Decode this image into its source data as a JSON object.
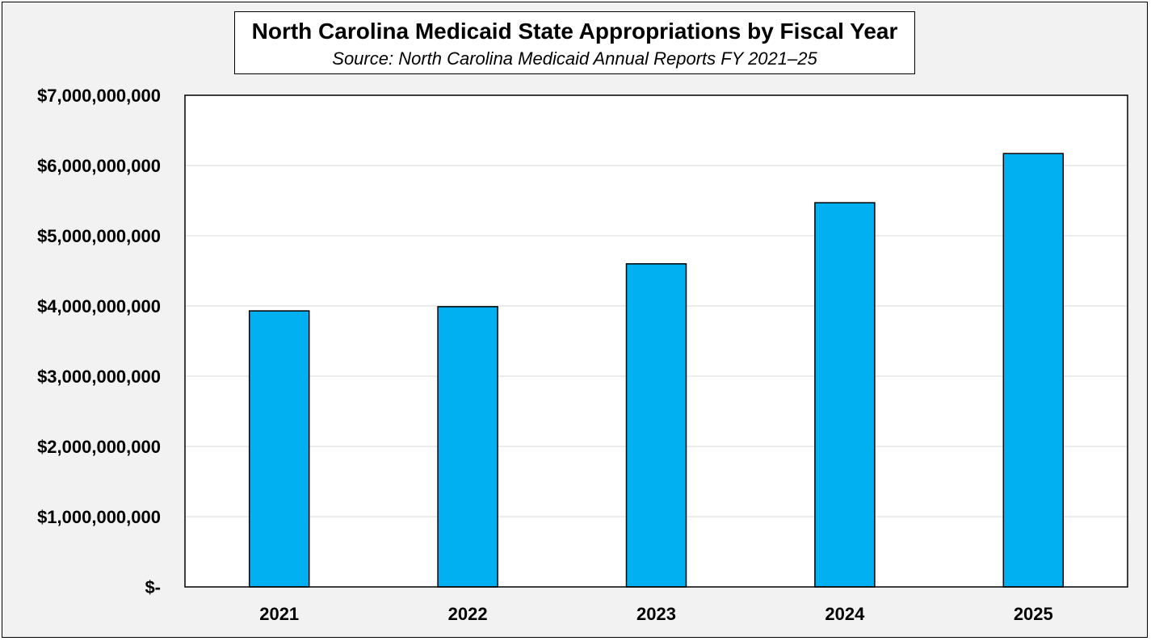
{
  "chart_data": {
    "type": "bar",
    "title": "North Carolina Medicaid State Appropriations by Fiscal Year",
    "subtitle": "Source: North Carolina Medicaid Annual Reports FY 2021–25",
    "categories": [
      "2021",
      "2022",
      "2023",
      "2024",
      "2025"
    ],
    "values": [
      3930000000,
      3990000000,
      4600000000,
      5470000000,
      6170000000
    ],
    "ylim": [
      0,
      7000000000
    ],
    "yticks": [
      0,
      1000000000,
      2000000000,
      3000000000,
      4000000000,
      5000000000,
      6000000000,
      7000000000
    ],
    "ytick_labels": [
      "$-",
      "$1,000,000,000",
      "$2,000,000,000",
      "$3,000,000,000",
      "$4,000,000,000",
      "$5,000,000,000",
      "$6,000,000,000",
      "$7,000,000,000"
    ],
    "xlabel": "",
    "ylabel": "",
    "grid": true,
    "bar_color": "#00b0f0",
    "grid_color": "#d9d9d9"
  }
}
